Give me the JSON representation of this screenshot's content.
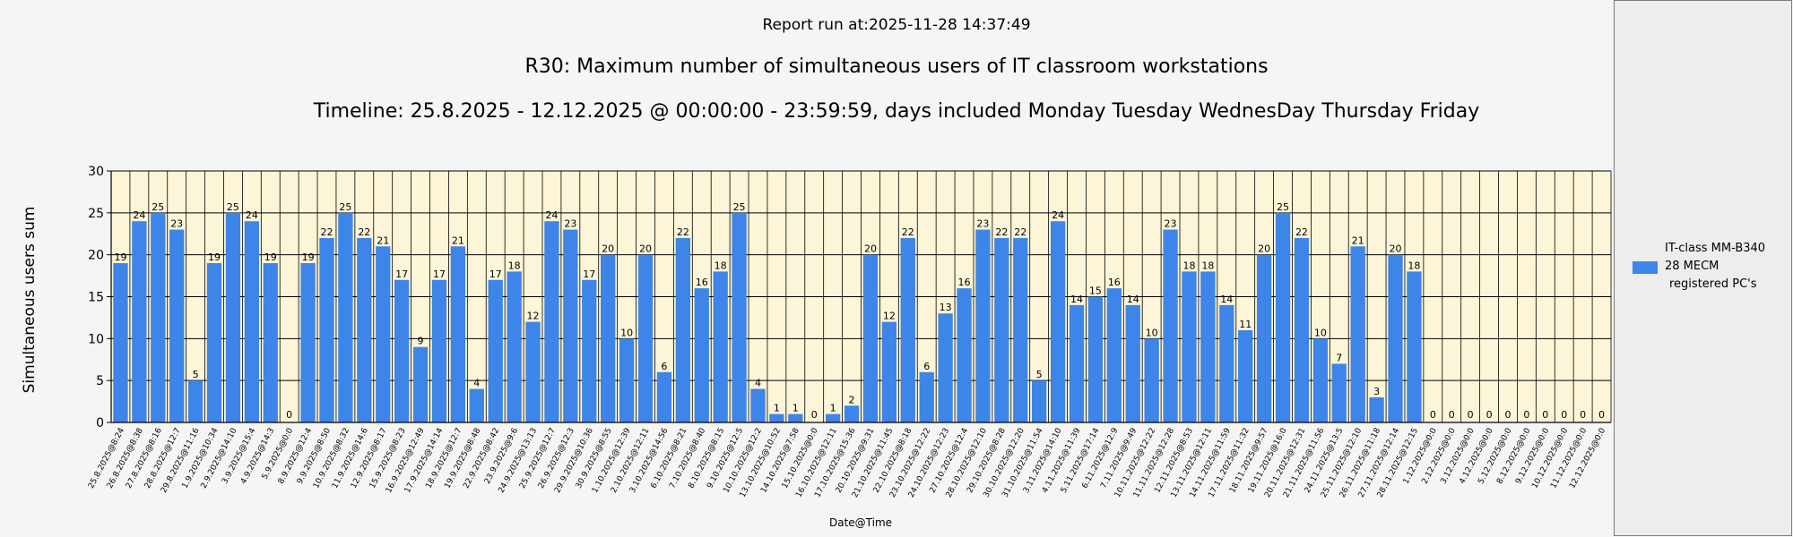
{
  "report_run": "Report run at:2025-11-28 14:37:49",
  "chart_data": {
    "type": "bar",
    "title": "R30: Maximum number of simultaneous users of IT classroom workstations",
    "subtitle": "Timeline: 25.8.2025  - 12.12.2025  @  00:00:00 -  23:59:59, days included Monday Tuesday WednesDay Thursday Friday",
    "xlabel": "Date@Time",
    "ylabel": "Simultaneous users sum",
    "ylim": [
      0,
      30
    ],
    "yticks": [
      0,
      5,
      10,
      15,
      20,
      25,
      30
    ],
    "grid": true,
    "legend_position": "right",
    "bar_color": "#3d85e8",
    "plot_background": "#fdf5d8",
    "categories": [
      "25.8.2025@8:24",
      "26.8.2025@8:38",
      "27.8.2025@8:16",
      "28.8.2025@12:7",
      "29.8.2025@11:16",
      "1.9.2025@10:34",
      "2.9.2025@14:10",
      "3.9.2025@15:4",
      "4.9.2025@14:3",
      "5.9.2025@0:0",
      "8.9.2025@12:4",
      "9.9.2025@8:50",
      "10.9.2025@8:32",
      "11.9.2025@14:6",
      "12.9.2025@8:17",
      "15.9.2025@8:23",
      "16.9.2025@12:49",
      "17.9.2025@14:14",
      "18.9.2025@12:7",
      "19.9.2025@8:48",
      "22.9.2025@8:42",
      "23.9.2025@9:6",
      "24.9.2025@13:13",
      "25.9.2025@12:7",
      "26.9.2025@12:3",
      "29.9.2025@10:36",
      "30.9.2025@8:55",
      "1.10.2025@12:39",
      "2.10.2025@12:11",
      "3.10.2025@14:56",
      "6.10.2025@8:21",
      "7.10.2025@8:40",
      "8.10.2025@8:15",
      "9.10.2025@12:5",
      "10.10.2025@12:2",
      "13.10.2025@10:52",
      "14.10.2025@7:58",
      "15.10.2025@0:0",
      "16.10.2025@12:11",
      "17.10.2025@15:36",
      "20.10.2025@9:31",
      "21.10.2025@11:45",
      "22.10.2025@8:18",
      "23.10.2025@12:22",
      "24.10.2025@12:23",
      "27.10.2025@12:4",
      "28.10.2025@12:10",
      "29.10.2025@8:28",
      "30.10.2025@12:20",
      "31.10.2025@11:54",
      "3.11.2025@14:10",
      "4.11.2025@11:39",
      "5.11.2025@17:14",
      "6.11.2025@12:9",
      "7.11.2025@9:49",
      "10.11.2025@12:22",
      "11.11.2025@12:28",
      "12.11.2025@8:53",
      "13.11.2025@12:11",
      "14.11.2025@11:59",
      "17.11.2025@11:32",
      "18.11.2025@9:57",
      "19.11.2025@16:0",
      "20.11.2025@12:31",
      "21.11.2025@11:56",
      "24.11.2025@13:5",
      "25.11.2025@12:10",
      "26.11.2025@11:18",
      "27.11.2025@12:14",
      "28.11.2025@12:15",
      "1.12.2025@0:0",
      "2.12.2025@0:0",
      "3.12.2025@0:0",
      "4.12.2025@0:0",
      "5.12.2025@0:0",
      "8.12.2025@0:0",
      "9.12.2025@0:0",
      "10.12.2025@0:0",
      "11.12.2025@0:0",
      "12.12.2025@0:0"
    ],
    "series": [
      {
        "name": "IT-class MM-B340 28 MECM registered PC's",
        "values": [
          19,
          24,
          25,
          23,
          5,
          19,
          25,
          24,
          19,
          0,
          19,
          22,
          25,
          22,
          21,
          17,
          9,
          17,
          21,
          4,
          17,
          18,
          12,
          24,
          23,
          17,
          20,
          10,
          20,
          6,
          22,
          16,
          18,
          25,
          4,
          1,
          1,
          0,
          1,
          2,
          20,
          12,
          22,
          6,
          13,
          16,
          23,
          22,
          22,
          5,
          24,
          14,
          15,
          16,
          14,
          10,
          23,
          18,
          18,
          14,
          11,
          20,
          25,
          22,
          10,
          7,
          21,
          3,
          20,
          18,
          0,
          0,
          0,
          0,
          0,
          0,
          0,
          0,
          0,
          0
        ]
      }
    ]
  },
  "legend": {
    "line1": "IT-class MM-B340",
    "line2": "28 MECM",
    "line3": "registered PC's"
  }
}
